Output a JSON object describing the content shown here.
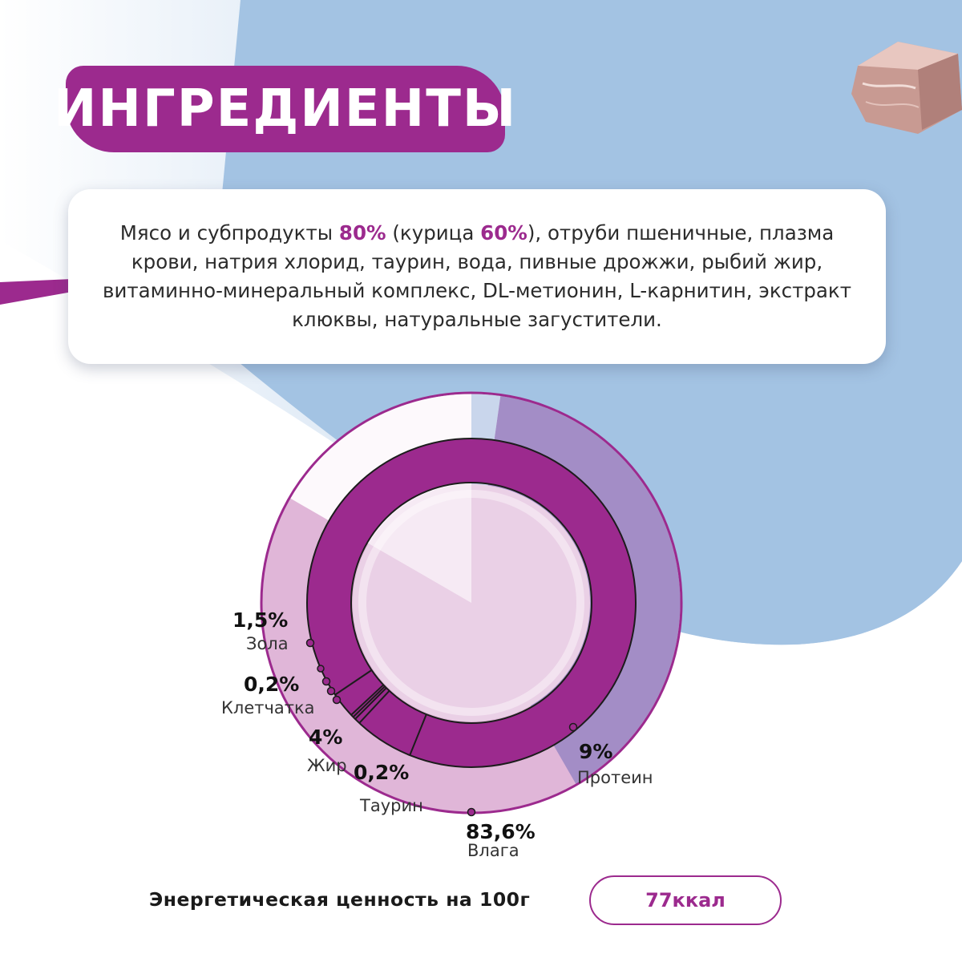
{
  "header": {
    "title": "ИНГРЕДИЕНТЫ"
  },
  "ingredients": {
    "lines": [
      {
        "parts": [
          {
            "text": "Мясо и субпродукты ",
            "highlight": false
          },
          {
            "text": "80%",
            "highlight": true
          },
          {
            "text": " (курица ",
            "highlight": false
          },
          {
            "text": "60%",
            "highlight": true
          },
          {
            "text": "), отруби пшеничные, плазма",
            "highlight": false
          }
        ]
      },
      {
        "parts": [
          {
            "text": "крови, натрия хлорид, таурин, вода, пивные дрожжи, рыбий жир,",
            "highlight": false
          }
        ]
      },
      {
        "parts": [
          {
            "text": "витаминно-минеральный комплекс, DL-метионин, L-карнитин, экстракт",
            "highlight": false
          }
        ]
      },
      {
        "parts": [
          {
            "text": "клюквы, натуральные загустители.",
            "highlight": false
          }
        ]
      }
    ]
  },
  "chart_data": {
    "type": "pie",
    "title": "",
    "slices": [
      {
        "label": "Влага",
        "value": 83.6,
        "value_text": "83,6%"
      },
      {
        "label": "Протеин",
        "value": 9,
        "value_text": "9%"
      },
      {
        "label": "Таурин",
        "value": 0.2,
        "value_text": "0,2%"
      },
      {
        "label": "Жир",
        "value": 4,
        "value_text": "4%"
      },
      {
        "label": "Клетчатка",
        "value": 0.2,
        "value_text": "0,2%"
      },
      {
        "label": "Зола",
        "value": 1.5,
        "value_text": "1,5%"
      }
    ]
  },
  "energy": {
    "label": "Энергетическая ценность на 100г",
    "value": "77ккал"
  },
  "colors": {
    "accent": "#9c2a8e",
    "background_blue": "#a3c3e3",
    "light_pink": "#e0b6d8",
    "inner_pink": "#ead0e6"
  }
}
